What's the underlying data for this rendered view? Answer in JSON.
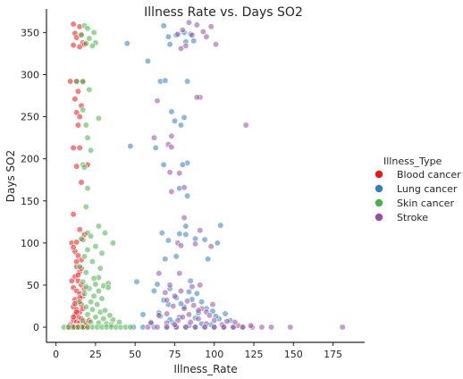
{
  "chart_data": {
    "type": "scatter",
    "title": "Illness Rate vs. Days SO2",
    "xlabel": "Illness_Rate",
    "ylabel": "Days SO2",
    "xlim": [
      -6,
      195
    ],
    "ylim": [
      -18,
      378
    ],
    "xticks": [
      0,
      25,
      50,
      75,
      100,
      125,
      150,
      175
    ],
    "yticks": [
      0,
      50,
      100,
      150,
      200,
      250,
      300,
      350
    ],
    "grid": false,
    "legend_title": "Illness_Type",
    "legend_position": "right",
    "colors": {
      "Blood cancer": "#e41a1c",
      "Lung cancer": "#377eb8",
      "Skin cancer": "#4daf4a",
      "Stroke": "#984ea3"
    },
    "series": [
      {
        "name": "Blood cancer",
        "points": [
          [
            11,
            360
          ],
          [
            15,
            357
          ],
          [
            12,
            349
          ],
          [
            16,
            348
          ],
          [
            13,
            344
          ],
          [
            17,
            338
          ],
          [
            11,
            335
          ],
          [
            15,
            333
          ],
          [
            18,
            336
          ],
          [
            9,
            292
          ],
          [
            13,
            292
          ],
          [
            17,
            291
          ],
          [
            14,
            280
          ],
          [
            12,
            271
          ],
          [
            16,
            263
          ],
          [
            13,
            255
          ],
          [
            15,
            250
          ],
          [
            14,
            240
          ],
          [
            11,
            213
          ],
          [
            15,
            213
          ],
          [
            13,
            191
          ],
          [
            20,
            193
          ],
          [
            16,
            172
          ],
          [
            11,
            134
          ],
          [
            15,
            116
          ],
          [
            10,
            100
          ],
          [
            13,
            101
          ],
          [
            17,
            104
          ],
          [
            12,
            90
          ],
          [
            14,
            85
          ],
          [
            16,
            80
          ],
          [
            13,
            72
          ],
          [
            15,
            66
          ],
          [
            12,
            60
          ],
          [
            14,
            55
          ],
          [
            16,
            50
          ],
          [
            11,
            47
          ],
          [
            13,
            43
          ],
          [
            15,
            40
          ],
          [
            17,
            37
          ],
          [
            12,
            33
          ],
          [
            14,
            30
          ],
          [
            16,
            27
          ],
          [
            11,
            24
          ],
          [
            13,
            21
          ],
          [
            15,
            18
          ],
          [
            12,
            15
          ],
          [
            14,
            12
          ],
          [
            16,
            10
          ],
          [
            11,
            8
          ],
          [
            13,
            6
          ],
          [
            15,
            5
          ],
          [
            17,
            4
          ],
          [
            9,
            3
          ],
          [
            10,
            2
          ],
          [
            12,
            1
          ],
          [
            14,
            1
          ],
          [
            16,
            1
          ],
          [
            18,
            1
          ],
          [
            20,
            0
          ],
          [
            8,
            0
          ],
          [
            10,
            0
          ],
          [
            12,
            0
          ],
          [
            14,
            0
          ],
          [
            16,
            0
          ],
          [
            18,
            0
          ],
          [
            19,
            5
          ],
          [
            21,
            8
          ],
          [
            11,
            12
          ],
          [
            13,
            18
          ],
          [
            17,
            22
          ],
          [
            12,
            28
          ],
          [
            15,
            35
          ],
          [
            18,
            45
          ],
          [
            10,
            55
          ],
          [
            14,
            62
          ],
          [
            16,
            70
          ],
          [
            13,
            78
          ],
          [
            11,
            95
          ],
          [
            18,
            110
          ]
        ]
      },
      {
        "name": "Lung cancer",
        "points": [
          [
            68,
            358
          ],
          [
            81,
            350
          ],
          [
            76,
            347
          ],
          [
            85,
            348
          ],
          [
            71,
            345
          ],
          [
            45,
            337
          ],
          [
            82,
            339
          ],
          [
            72,
            336
          ],
          [
            87,
            340
          ],
          [
            58,
            316
          ],
          [
            66,
            292
          ],
          [
            69,
            293
          ],
          [
            83,
            292
          ],
          [
            73,
            256
          ],
          [
            81,
            249
          ],
          [
            75,
            245
          ],
          [
            79,
            240
          ],
          [
            47,
            215
          ],
          [
            63,
            213
          ],
          [
            83,
            195
          ],
          [
            68,
            193
          ],
          [
            80,
            193
          ],
          [
            78,
            165
          ],
          [
            83,
            156
          ],
          [
            82,
            120
          ],
          [
            104,
            121
          ],
          [
            67,
            112
          ],
          [
            78,
            111
          ],
          [
            82,
            110
          ],
          [
            71,
            103
          ],
          [
            88,
            105
          ],
          [
            94,
            104
          ],
          [
            102,
            100
          ],
          [
            76,
            84
          ],
          [
            69,
            81
          ],
          [
            96,
            81
          ],
          [
            51,
            54
          ],
          [
            64,
            51
          ],
          [
            85,
            55
          ],
          [
            62,
            43
          ],
          [
            72,
            46
          ],
          [
            84,
            42
          ],
          [
            89,
            40
          ],
          [
            76,
            35
          ],
          [
            92,
            30
          ],
          [
            71,
            27
          ],
          [
            81,
            24
          ],
          [
            95,
            22
          ],
          [
            99,
            19
          ],
          [
            55,
            15
          ],
          [
            66,
            13
          ],
          [
            78,
            12
          ],
          [
            88,
            11
          ],
          [
            103,
            10
          ],
          [
            110,
            8
          ],
          [
            60,
            6
          ],
          [
            74,
            5
          ],
          [
            92,
            4
          ],
          [
            98,
            3
          ],
          [
            49,
            0
          ],
          [
            55,
            0
          ],
          [
            62,
            0
          ],
          [
            70,
            0
          ],
          [
            76,
            0
          ],
          [
            82,
            0
          ],
          [
            88,
            0
          ],
          [
            94,
            0
          ],
          [
            100,
            0
          ],
          [
            106,
            0
          ],
          [
            112,
            0
          ],
          [
            118,
            0
          ],
          [
            84,
            2
          ],
          [
            72,
            9
          ],
          [
            65,
            17
          ],
          [
            90,
            17
          ],
          [
            79,
            28
          ],
          [
            68,
            32
          ],
          [
            86,
            33
          ],
          [
            101,
            13
          ],
          [
            107,
            16
          ]
        ]
      },
      {
        "name": "Skin cancer",
        "points": [
          [
            18,
            358
          ],
          [
            20,
            355
          ],
          [
            24,
            350
          ],
          [
            16,
            347
          ],
          [
            21,
            343
          ],
          [
            19,
            337
          ],
          [
            25,
            338
          ],
          [
            23,
            334
          ],
          [
            13,
            292
          ],
          [
            17,
            292
          ],
          [
            21,
            282
          ],
          [
            17,
            258
          ],
          [
            27,
            248
          ],
          [
            19,
            240
          ],
          [
            20,
            225
          ],
          [
            22,
            210
          ],
          [
            17,
            193
          ],
          [
            18,
            190
          ],
          [
            20,
            165
          ],
          [
            19,
            143
          ],
          [
            27,
            120
          ],
          [
            20,
            112
          ],
          [
            31,
            112
          ],
          [
            36,
            100
          ],
          [
            16,
            105
          ],
          [
            22,
            108
          ],
          [
            25,
            96
          ],
          [
            20,
            92
          ],
          [
            18,
            84
          ],
          [
            23,
            78
          ],
          [
            28,
            70
          ],
          [
            19,
            65
          ],
          [
            27,
            59
          ],
          [
            17,
            54
          ],
          [
            25,
            51
          ],
          [
            30,
            49
          ],
          [
            33,
            52
          ],
          [
            21,
            46
          ],
          [
            27,
            43
          ],
          [
            18,
            40
          ],
          [
            24,
            37
          ],
          [
            29,
            34
          ],
          [
            22,
            30
          ],
          [
            26,
            27
          ],
          [
            19,
            24
          ],
          [
            23,
            21
          ],
          [
            28,
            18
          ],
          [
            20,
            15
          ],
          [
            25,
            12
          ],
          [
            30,
            10
          ],
          [
            17,
            8
          ],
          [
            22,
            6
          ],
          [
            27,
            5
          ],
          [
            32,
            4
          ],
          [
            35,
            3
          ],
          [
            5,
            0
          ],
          [
            8,
            0
          ],
          [
            11,
            0
          ],
          [
            14,
            0
          ],
          [
            17,
            0
          ],
          [
            20,
            0
          ],
          [
            23,
            0
          ],
          [
            26,
            0
          ],
          [
            29,
            0
          ],
          [
            32,
            0
          ],
          [
            35,
            0
          ],
          [
            38,
            0
          ],
          [
            41,
            0
          ],
          [
            44,
            0
          ],
          [
            47,
            0
          ],
          [
            36,
            9
          ],
          [
            40,
            6
          ],
          [
            31,
            20
          ],
          [
            34,
            14
          ],
          [
            15,
            30
          ],
          [
            19,
            48
          ],
          [
            24,
            58
          ],
          [
            15,
            72
          ],
          [
            29,
            88
          ],
          [
            33,
            47
          ]
        ]
      },
      {
        "name": "Stroke",
        "points": [
          [
            84,
            362
          ],
          [
            89,
            359
          ],
          [
            98,
            357
          ],
          [
            80,
            353
          ],
          [
            77,
            348
          ],
          [
            93,
            351
          ],
          [
            86,
            347
          ],
          [
            95,
            345
          ],
          [
            101,
            336
          ],
          [
            82,
            334
          ],
          [
            79,
            331
          ],
          [
            91,
            273
          ],
          [
            89,
            273
          ],
          [
            64,
            269
          ],
          [
            73,
            227
          ],
          [
            120,
            240
          ],
          [
            71,
            217
          ],
          [
            62,
            225
          ],
          [
            73,
            214
          ],
          [
            78,
            183
          ],
          [
            72,
            184
          ],
          [
            81,
            166
          ],
          [
            73,
            161
          ],
          [
            81,
            130
          ],
          [
            91,
            115
          ],
          [
            77,
            100
          ],
          [
            79,
            97
          ],
          [
            88,
            99
          ],
          [
            98,
            96
          ],
          [
            65,
            64
          ],
          [
            78,
            64
          ],
          [
            72,
            50
          ],
          [
            79,
            43
          ],
          [
            86,
            48
          ],
          [
            91,
            50
          ],
          [
            69,
            41
          ],
          [
            75,
            37
          ],
          [
            70,
            32
          ],
          [
            83,
            31
          ],
          [
            74,
            25
          ],
          [
            87,
            26
          ],
          [
            92,
            22
          ],
          [
            95,
            18
          ],
          [
            65,
            14
          ],
          [
            70,
            16
          ],
          [
            80,
            12
          ],
          [
            90,
            10
          ],
          [
            100,
            8
          ],
          [
            60,
            5
          ],
          [
            70,
            5
          ],
          [
            85,
            6
          ],
          [
            95,
            4
          ],
          [
            105,
            3
          ],
          [
            115,
            2
          ],
          [
            58,
            0
          ],
          [
            64,
            0
          ],
          [
            70,
            0
          ],
          [
            76,
            0
          ],
          [
            82,
            0
          ],
          [
            88,
            0
          ],
          [
            94,
            0
          ],
          [
            100,
            0
          ],
          [
            106,
            0
          ],
          [
            112,
            0
          ],
          [
            118,
            0
          ],
          [
            124,
            0
          ],
          [
            130,
            0
          ],
          [
            136,
            0
          ],
          [
            148,
            0
          ],
          [
            181,
            0
          ],
          [
            84,
            15
          ],
          [
            90,
            20
          ],
          [
            77,
            8
          ],
          [
            97,
            14
          ],
          [
            108,
            7
          ],
          [
            123,
            2
          ],
          [
            81,
            22
          ],
          [
            75,
            3
          ],
          [
            99,
            27
          ],
          [
            113,
            6
          ]
        ]
      }
    ]
  }
}
